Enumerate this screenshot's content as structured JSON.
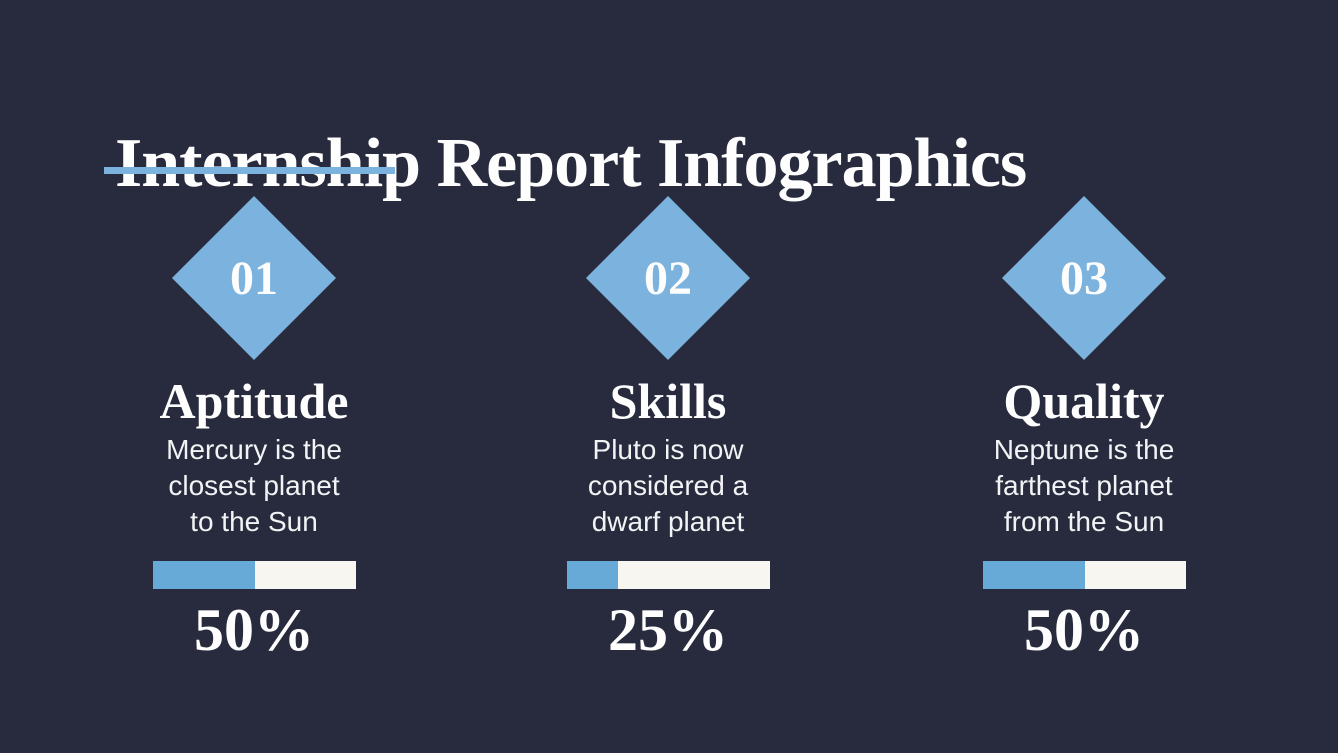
{
  "slide": {
    "title": "Internship Report Infographics"
  },
  "colors": {
    "background": "#272b3d",
    "accent_blue": "#7bb3de",
    "fill_blue": "#67a9d7",
    "bar_track": "#f8f6f0",
    "title_white": "#fefefe",
    "body_white": "#f2f3f5"
  },
  "columns": [
    {
      "number": "01",
      "heading": "Aptitude",
      "description_lines": [
        "Mercury is the",
        "closest planet",
        "to the Sun"
      ],
      "progress_percent": 50,
      "percent_label": "50%"
    },
    {
      "number": "02",
      "heading": "Skills",
      "description_lines": [
        "Pluto is now",
        "considered a",
        "dwarf planet"
      ],
      "progress_percent": 25,
      "percent_label": "25%"
    },
    {
      "number": "03",
      "heading": "Quality",
      "description_lines": [
        "Neptune is the",
        "farthest planet",
        "from the Sun"
      ],
      "progress_percent": 50,
      "percent_label": "50%"
    }
  ]
}
